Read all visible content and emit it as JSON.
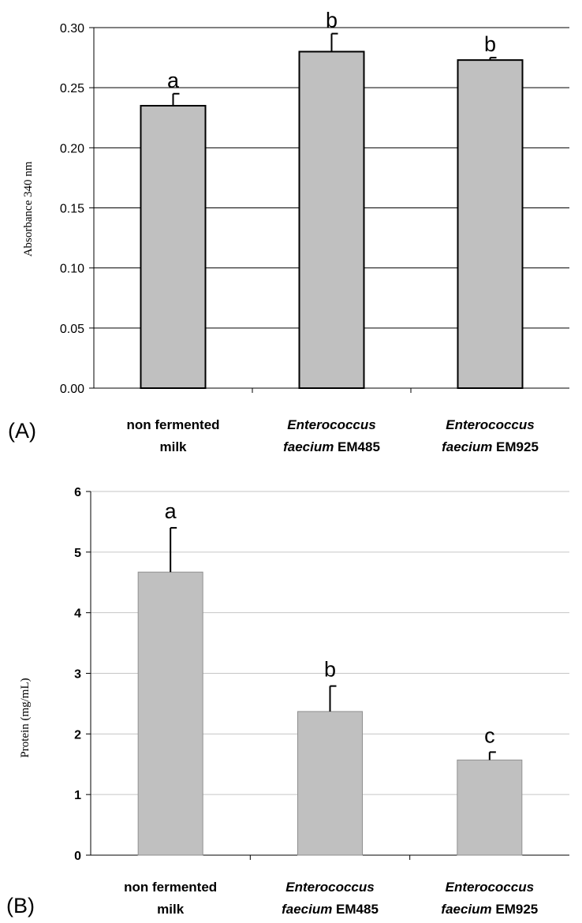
{
  "chart_data": [
    {
      "type": "bar",
      "panel_label": "(A)",
      "ylabel": "Absorbance 340 nm",
      "ylim": [
        0,
        0.3
      ],
      "yticks": [
        "0.00",
        "0.05",
        "0.10",
        "0.15",
        "0.20",
        "0.25",
        "0.30"
      ],
      "grid": true,
      "categories": [
        {
          "plain1": "non fermented",
          "italic1": "",
          "plain2": "milk",
          "italic2": ""
        },
        {
          "plain1": "",
          "italic1": "Enterococcus",
          "plain2": " EM485",
          "italic2": "faecium"
        },
        {
          "plain1": "",
          "italic1": "Enterococcus",
          "plain2": " EM925",
          "italic2": "faecium"
        }
      ],
      "values": [
        0.235,
        0.28,
        0.273
      ],
      "errors": [
        0.01,
        0.015,
        0.002
      ],
      "significance": [
        "a",
        "b",
        "b"
      ],
      "bar_color": "#c0c0c0"
    },
    {
      "type": "bar",
      "panel_label": "(B)",
      "ylabel": "Protein (mg/mL)",
      "ylim": [
        0,
        6
      ],
      "yticks": [
        "0",
        "1",
        "2",
        "3",
        "4",
        "5",
        "6"
      ],
      "grid": true,
      "categories": [
        {
          "plain1": "non fermented",
          "italic1": "",
          "plain2": "milk",
          "italic2": ""
        },
        {
          "plain1": "",
          "italic1": "Enterococcus",
          "plain2": " EM485",
          "italic2": "faecium"
        },
        {
          "plain1": "",
          "italic1": "Enterococcus",
          "plain2": " EM925",
          "italic2": "faecium"
        }
      ],
      "values": [
        4.67,
        2.37,
        1.57
      ],
      "errors": [
        0.73,
        0.42,
        0.13
      ],
      "significance": [
        "a",
        "b",
        "c"
      ],
      "bar_color": "#c0c0c0"
    }
  ]
}
